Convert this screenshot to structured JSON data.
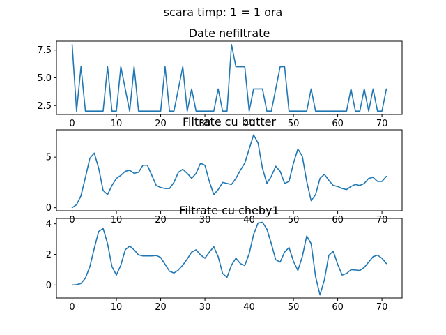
{
  "suptitle": "scara timp: 1 = 1 ora",
  "colors": {
    "line": "#1f77b4"
  },
  "chart_data": [
    {
      "type": "line",
      "title": "Date nefiltrate",
      "xlim": [
        -3.55,
        74.55
      ],
      "ylim": [
        1.7,
        8.3
      ],
      "xticks": [
        0,
        10,
        20,
        30,
        40,
        50,
        60,
        70
      ],
      "xtick_labels": [
        "0",
        "10",
        "20",
        "30",
        "40",
        "50",
        "60",
        "70"
      ],
      "yticks": [
        2.5,
        5.0,
        7.5
      ],
      "ytick_labels": [
        "2.5",
        "5.0",
        "7.5"
      ],
      "grid": false,
      "series": [
        {
          "x": [
            0,
            1,
            2,
            3,
            4,
            5,
            6,
            7,
            8,
            9,
            10,
            11,
            12,
            13,
            14,
            15,
            16,
            17,
            18,
            19,
            20,
            21,
            22,
            23,
            24,
            25,
            26,
            27,
            28,
            29,
            30,
            31,
            32,
            33,
            34,
            35,
            36,
            37,
            38,
            39,
            40,
            41,
            42,
            43,
            44,
            45,
            46,
            47,
            48,
            49,
            50,
            51,
            52,
            53,
            54,
            55,
            56,
            57,
            58,
            59,
            60,
            61,
            62,
            63,
            64,
            65,
            66,
            67,
            68,
            69,
            70,
            71
          ],
          "values": [
            8,
            2,
            6,
            2,
            2,
            2,
            2,
            2,
            6,
            2,
            2,
            6,
            4,
            2,
            6,
            2,
            2,
            2,
            2,
            2,
            2,
            6,
            2,
            2,
            4,
            6,
            2,
            4,
            2,
            2,
            2,
            2,
            2,
            4,
            2,
            2,
            8,
            6,
            6,
            6,
            2,
            4,
            4,
            4,
            2,
            2,
            4,
            6,
            6,
            2,
            2,
            2,
            2,
            2,
            4,
            2,
            2,
            2,
            2,
            2,
            2,
            2,
            2,
            4,
            2,
            2,
            4,
            2,
            4,
            2,
            2,
            4
          ]
        }
      ]
    },
    {
      "type": "line",
      "title": "Filtrate cu butter",
      "xlim": [
        -3.55,
        74.55
      ],
      "ylim": [
        -0.3,
        7.7
      ],
      "xticks": [
        0,
        10,
        20,
        30,
        40,
        50,
        60,
        70
      ],
      "xtick_labels": [
        "0",
        "10",
        "20",
        "30",
        "40",
        "50",
        "60",
        "70"
      ],
      "yticks": [
        0,
        5
      ],
      "ytick_labels": [
        "0",
        "5"
      ],
      "grid": false,
      "series": [
        {
          "x": [
            0,
            1,
            2,
            3,
            4,
            5,
            6,
            7,
            8,
            9,
            10,
            11,
            12,
            13,
            14,
            15,
            16,
            17,
            18,
            19,
            20,
            21,
            22,
            23,
            24,
            25,
            26,
            27,
            28,
            29,
            30,
            31,
            32,
            33,
            34,
            35,
            36,
            37,
            38,
            39,
            40,
            41,
            42,
            43,
            44,
            45,
            46,
            47,
            48,
            49,
            50,
            51,
            52,
            53,
            54,
            55,
            56,
            57,
            58,
            59,
            60,
            61,
            62,
            63,
            64,
            65,
            66,
            67,
            68,
            69,
            70,
            71
          ],
          "values": [
            0,
            0.3,
            1.2,
            3.0,
            4.9,
            5.4,
            3.9,
            1.7,
            1.3,
            2.2,
            2.9,
            3.2,
            3.6,
            3.7,
            3.4,
            3.5,
            4.2,
            4.2,
            3.2,
            2.2,
            2.0,
            1.9,
            1.9,
            2.5,
            3.5,
            3.8,
            3.4,
            2.9,
            3.4,
            4.4,
            4.2,
            2.6,
            1.3,
            1.8,
            2.5,
            2.4,
            2.3,
            2.9,
            3.7,
            4.4,
            5.8,
            7.2,
            6.4,
            3.9,
            2.4,
            3.1,
            4.1,
            3.6,
            2.4,
            2.6,
            4.4,
            5.8,
            5.1,
            2.6,
            0.7,
            1.3,
            2.9,
            3.3,
            2.7,
            2.2,
            2.1,
            1.9,
            1.8,
            2.1,
            2.3,
            2.2,
            2.4,
            2.9,
            3.0,
            2.6,
            2.6,
            3.1
          ]
        }
      ]
    },
    {
      "type": "line",
      "title": "Filtrate cu cheby1",
      "xlim": [
        -3.55,
        74.55
      ],
      "ylim": [
        -0.85,
        4.35
      ],
      "xticks": [
        0,
        10,
        20,
        30,
        40,
        50,
        60,
        70
      ],
      "xtick_labels": [
        "0",
        "10",
        "20",
        "30",
        "40",
        "50",
        "60",
        "70"
      ],
      "yticks": [
        0,
        2,
        4
      ],
      "ytick_labels": [
        "0",
        "2",
        "4"
      ],
      "grid": false,
      "series": [
        {
          "x": [
            0,
            1,
            2,
            3,
            4,
            5,
            6,
            7,
            8,
            9,
            10,
            11,
            12,
            13,
            14,
            15,
            16,
            17,
            18,
            19,
            20,
            21,
            22,
            23,
            24,
            25,
            26,
            27,
            28,
            29,
            30,
            31,
            32,
            33,
            34,
            35,
            36,
            37,
            38,
            39,
            40,
            41,
            42,
            43,
            44,
            45,
            46,
            47,
            48,
            49,
            50,
            51,
            52,
            53,
            54,
            55,
            56,
            57,
            58,
            59,
            60,
            61,
            62,
            63,
            64,
            65,
            66,
            67,
            68,
            69,
            70,
            71
          ],
          "values": [
            0,
            0.02,
            0.1,
            0.45,
            1.2,
            2.4,
            3.5,
            3.7,
            2.7,
            1.2,
            0.65,
            1.3,
            2.3,
            2.55,
            2.3,
            1.97,
            1.9,
            1.9,
            1.9,
            1.93,
            1.8,
            1.35,
            0.9,
            0.78,
            0.98,
            1.3,
            1.7,
            2.15,
            2.3,
            1.97,
            1.75,
            2.15,
            2.5,
            1.85,
            0.75,
            0.5,
            1.3,
            1.75,
            1.4,
            1.27,
            2.05,
            3.3,
            4.05,
            4.1,
            3.65,
            2.7,
            1.65,
            1.5,
            2.15,
            2.45,
            1.55,
            0.95,
            1.85,
            3.2,
            2.7,
            0.55,
            -0.65,
            0.35,
            1.95,
            2.2,
            1.35,
            0.65,
            0.75,
            1.0,
            0.98,
            0.95,
            1.15,
            1.5,
            1.85,
            1.95,
            1.75,
            1.4
          ]
        }
      ]
    }
  ]
}
